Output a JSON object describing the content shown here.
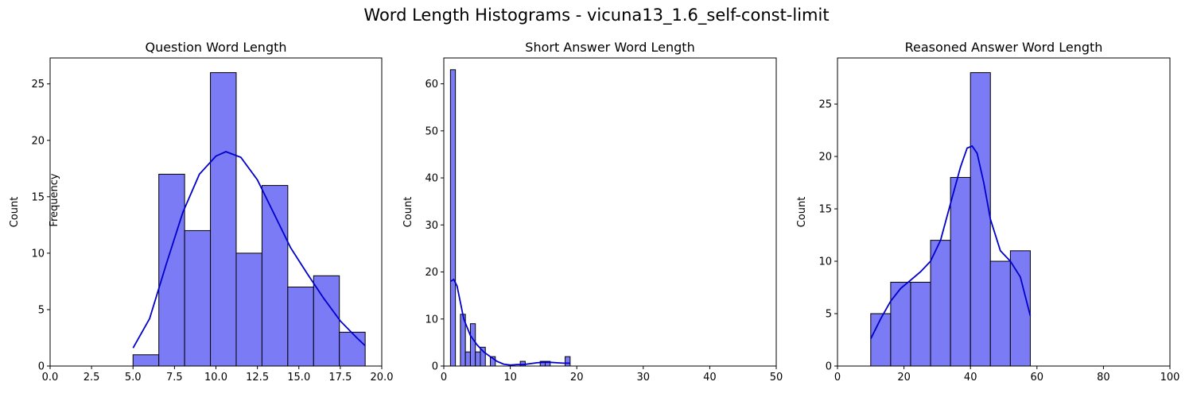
{
  "figure": {
    "title": "Word Length Histograms - vicuna13_1.6_self-const-limit",
    "stray_label": "Frequency"
  },
  "colors": {
    "bar_fill": "#7b7bf5",
    "bar_edge": "#000000",
    "kde_line": "#0000cc",
    "axis": "#000000",
    "background": "#ffffff"
  },
  "chart_data": [
    {
      "type": "bar",
      "title": "Question Word Length",
      "xlabel": "",
      "ylabel": "Count",
      "xlim": [
        0,
        20
      ],
      "ylim": [
        0,
        27.3
      ],
      "xticks": [
        0,
        2.5,
        5,
        7.5,
        10,
        12.5,
        15,
        17.5,
        20
      ],
      "xtick_labels": [
        "0.0",
        "2.5",
        "5.0",
        "7.5",
        "10.0",
        "12.5",
        "15.0",
        "17.5",
        "20.0"
      ],
      "yticks": [
        0,
        5,
        10,
        15,
        20,
        25
      ],
      "grid": false,
      "bins": [
        {
          "x0": 5.0,
          "x1": 6.556,
          "count": 1
        },
        {
          "x0": 6.556,
          "x1": 8.111,
          "count": 17
        },
        {
          "x0": 8.111,
          "x1": 9.667,
          "count": 12
        },
        {
          "x0": 9.667,
          "x1": 11.222,
          "count": 26
        },
        {
          "x0": 11.222,
          "x1": 12.778,
          "count": 10
        },
        {
          "x0": 12.778,
          "x1": 14.333,
          "count": 16
        },
        {
          "x0": 14.333,
          "x1": 15.889,
          "count": 7
        },
        {
          "x0": 15.889,
          "x1": 17.444,
          "count": 8
        },
        {
          "x0": 17.444,
          "x1": 19.0,
          "count": 3
        }
      ],
      "kde": [
        [
          5.0,
          1.6
        ],
        [
          6.0,
          4.2
        ],
        [
          7.0,
          9.0
        ],
        [
          8.0,
          13.6
        ],
        [
          9.0,
          17.0
        ],
        [
          10.0,
          18.6
        ],
        [
          10.6,
          19.0
        ],
        [
          11.5,
          18.5
        ],
        [
          12.5,
          16.5
        ],
        [
          13.5,
          13.5
        ],
        [
          14.5,
          10.5
        ],
        [
          15.5,
          8.2
        ],
        [
          16.5,
          6.0
        ],
        [
          17.5,
          4.0
        ],
        [
          18.5,
          2.5
        ],
        [
          19.0,
          1.8
        ]
      ]
    },
    {
      "type": "bar",
      "title": "Short Answer Word Length",
      "xlabel": "",
      "ylabel": "Count",
      "xlim": [
        0,
        50
      ],
      "ylim": [
        0,
        65.5
      ],
      "xticks": [
        0,
        10,
        20,
        30,
        40,
        50
      ],
      "xtick_labels": [
        "0",
        "10",
        "20",
        "30",
        "40",
        "50"
      ],
      "yticks": [
        0,
        10,
        20,
        30,
        40,
        50,
        60
      ],
      "grid": false,
      "bins": [
        {
          "x0": 1.0,
          "x1": 1.75,
          "count": 63
        },
        {
          "x0": 1.75,
          "x1": 2.5,
          "count": 0
        },
        {
          "x0": 2.5,
          "x1": 3.25,
          "count": 11
        },
        {
          "x0": 3.25,
          "x1": 4.0,
          "count": 3
        },
        {
          "x0": 4.0,
          "x1": 4.75,
          "count": 9
        },
        {
          "x0": 4.75,
          "x1": 5.5,
          "count": 3
        },
        {
          "x0": 5.5,
          "x1": 6.25,
          "count": 4
        },
        {
          "x0": 6.25,
          "x1": 7.0,
          "count": 0
        },
        {
          "x0": 7.0,
          "x1": 7.75,
          "count": 2
        },
        {
          "x0": 11.5,
          "x1": 12.25,
          "count": 1
        },
        {
          "x0": 14.5,
          "x1": 15.25,
          "count": 1
        },
        {
          "x0": 15.25,
          "x1": 16.0,
          "count": 1
        },
        {
          "x0": 18.25,
          "x1": 19.0,
          "count": 2
        }
      ],
      "kde": [
        [
          1.0,
          18.0
        ],
        [
          1.5,
          18.4
        ],
        [
          2.0,
          17.0
        ],
        [
          2.5,
          13.5
        ],
        [
          3.0,
          10.0
        ],
        [
          4.0,
          6.5
        ],
        [
          5.0,
          4.5
        ],
        [
          6.0,
          3.0
        ],
        [
          7.0,
          2.0
        ],
        [
          8.0,
          1.0
        ],
        [
          9.0,
          0.4
        ],
        [
          10.0,
          0.2
        ],
        [
          11.0,
          0.3
        ],
        [
          12.0,
          0.3
        ],
        [
          13.0,
          0.5
        ],
        [
          14.0,
          0.7
        ],
        [
          15.0,
          0.8
        ],
        [
          16.0,
          0.8
        ],
        [
          17.0,
          0.7
        ],
        [
          18.0,
          0.6
        ],
        [
          19.0,
          0.6
        ]
      ]
    },
    {
      "type": "bar",
      "title": "Reasoned Answer Word Length",
      "xlabel": "",
      "ylabel": "Count",
      "xlim": [
        0,
        100
      ],
      "ylim": [
        0,
        29.4
      ],
      "xticks": [
        0,
        20,
        40,
        60,
        80,
        100
      ],
      "xtick_labels": [
        "0",
        "20",
        "40",
        "60",
        "80",
        "100"
      ],
      "yticks": [
        0,
        5,
        10,
        15,
        20,
        25
      ],
      "grid": false,
      "bins": [
        {
          "x0": 10.0,
          "x1": 16.0,
          "count": 5
        },
        {
          "x0": 16.0,
          "x1": 22.0,
          "count": 8
        },
        {
          "x0": 22.0,
          "x1": 28.0,
          "count": 8
        },
        {
          "x0": 28.0,
          "x1": 34.0,
          "count": 12
        },
        {
          "x0": 34.0,
          "x1": 40.0,
          "count": 18
        },
        {
          "x0": 40.0,
          "x1": 46.0,
          "count": 28
        },
        {
          "x0": 46.0,
          "x1": 52.0,
          "count": 10
        },
        {
          "x0": 52.0,
          "x1": 58.0,
          "count": 11
        }
      ],
      "kde": [
        [
          10.0,
          2.6
        ],
        [
          13.0,
          4.5
        ],
        [
          16.0,
          6.2
        ],
        [
          19.0,
          7.4
        ],
        [
          22.0,
          8.2
        ],
        [
          25.0,
          9.0
        ],
        [
          28.0,
          10.0
        ],
        [
          31.0,
          12.0
        ],
        [
          34.0,
          15.5
        ],
        [
          37.0,
          19.0
        ],
        [
          39.0,
          20.8
        ],
        [
          40.5,
          21.0
        ],
        [
          42.0,
          20.3
        ],
        [
          44.0,
          17.5
        ],
        [
          46.0,
          14.0
        ],
        [
          49.0,
          11.0
        ],
        [
          52.0,
          10.0
        ],
        [
          55.0,
          8.5
        ],
        [
          58.0,
          4.8
        ]
      ]
    }
  ]
}
